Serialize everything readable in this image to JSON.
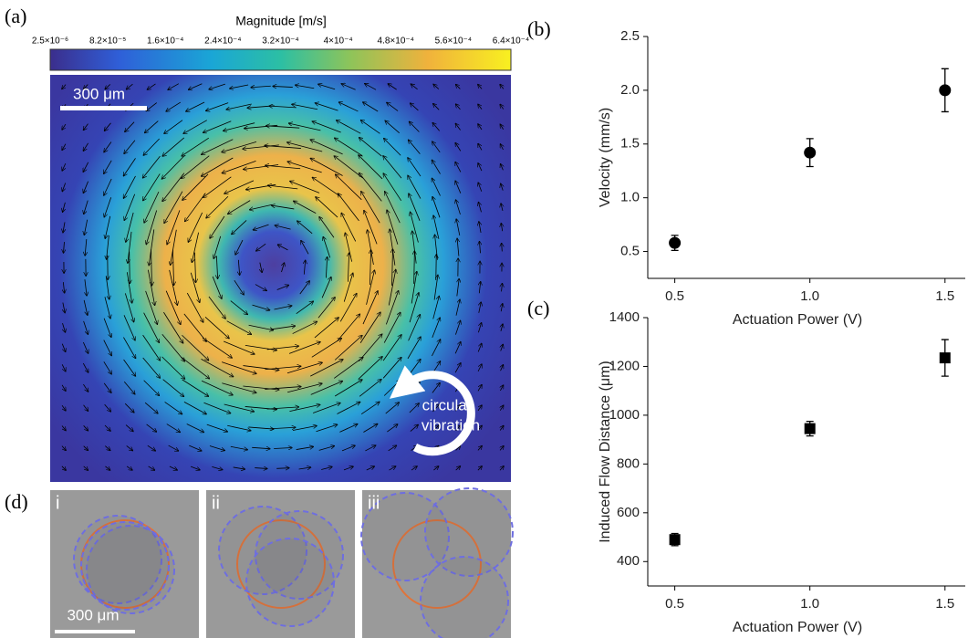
{
  "panel_labels": [
    "(a)",
    "(b)",
    "(c)",
    "(d)"
  ],
  "colorbar": {
    "title": "Magnitude [m/s]",
    "tick_labels": [
      "2.5×10⁻⁶",
      "8.2×10⁻⁵",
      "1.6×10⁻⁴",
      "2.4×10⁻⁴",
      "3.2×10⁻⁴",
      "4×10⁻⁴",
      "4.8×10⁻⁴",
      "5.6×10⁻⁴",
      "6.4×10⁻⁴"
    ]
  },
  "flow_map": {
    "scale_bar": "300 μm",
    "annotation": [
      "circular",
      "vibration"
    ]
  },
  "snapshots": {
    "labels": [
      "i",
      "ii",
      "iii"
    ],
    "scale_bar": "300 μm"
  },
  "chart_data": [
    {
      "type": "scatter",
      "marker": "circle",
      "color": "#000000",
      "x": [
        0.5,
        1.0,
        1.5
      ],
      "values": [
        0.58,
        1.42,
        2.0
      ],
      "errors": [
        0.07,
        0.13,
        0.2
      ],
      "xlabel": "Actuation Power (V)",
      "ylabel": "Velocity (mm/s)",
      "xlim": [
        0.4,
        1.575
      ],
      "ylim": [
        0.25,
        2.5
      ],
      "xticks": [
        0.5,
        {
          "value": 1,
          "label": "1.0"
        },
        1.5
      ],
      "yticks": [
        0.5,
        {
          "value": 1,
          "label": "1.0"
        },
        1.5,
        {
          "value": 2,
          "label": "2.0"
        },
        2.5
      ]
    },
    {
      "type": "scatter",
      "marker": "square",
      "color": "#000000",
      "x": [
        0.5,
        1.0,
        1.5
      ],
      "values": [
        490,
        945,
        1235
      ],
      "errors": [
        25,
        30,
        75
      ],
      "xlabel": "Actuation Power (V)",
      "ylabel": "Induced Flow Distance (μm)",
      "xlim": [
        0.4,
        1.575
      ],
      "ylim": [
        300,
        1400
      ],
      "xticks": [
        0.5,
        {
          "value": 1,
          "label": "1.0"
        },
        1.5
      ],
      "yticks": [
        400,
        600,
        800,
        1000,
        1200,
        1400
      ]
    }
  ]
}
